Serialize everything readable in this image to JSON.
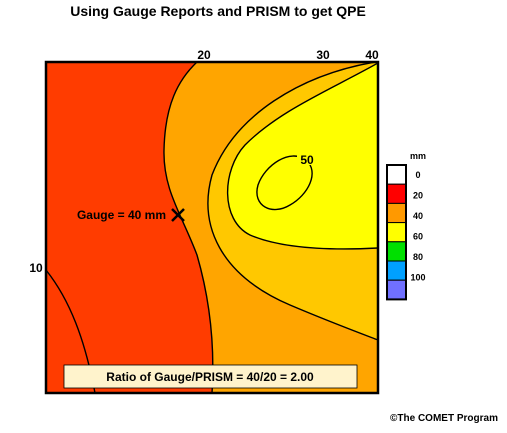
{
  "title": "Using Gauge Reports and PRISM to get QPE",
  "colors": {
    "c0_20": "#ff3c00",
    "c20_40": "#ffa500",
    "c40_60": "#ffc800",
    "c60_80": "#ffff00",
    "legend": [
      "#ffffff",
      "#ff0000",
      "#ff9900",
      "#ffff00",
      "#00e000",
      "#00a0ff",
      "#7070ff"
    ],
    "note_bg": "#fff3cc"
  },
  "contour_labels": {
    "c10": "10",
    "c20": "20",
    "c30": "30",
    "c40": "40",
    "c50": "50"
  },
  "gauge": {
    "label": "Gauge = 40 mm",
    "marker_icon": "x-mark-icon"
  },
  "note": "Ratio of Gauge/PRISM = 40/20 = 2.00",
  "legend": {
    "unit": "mm",
    "labels": [
      "0",
      "20",
      "40",
      "60",
      "80",
      "100"
    ]
  },
  "credit": "©The COMET Program"
}
